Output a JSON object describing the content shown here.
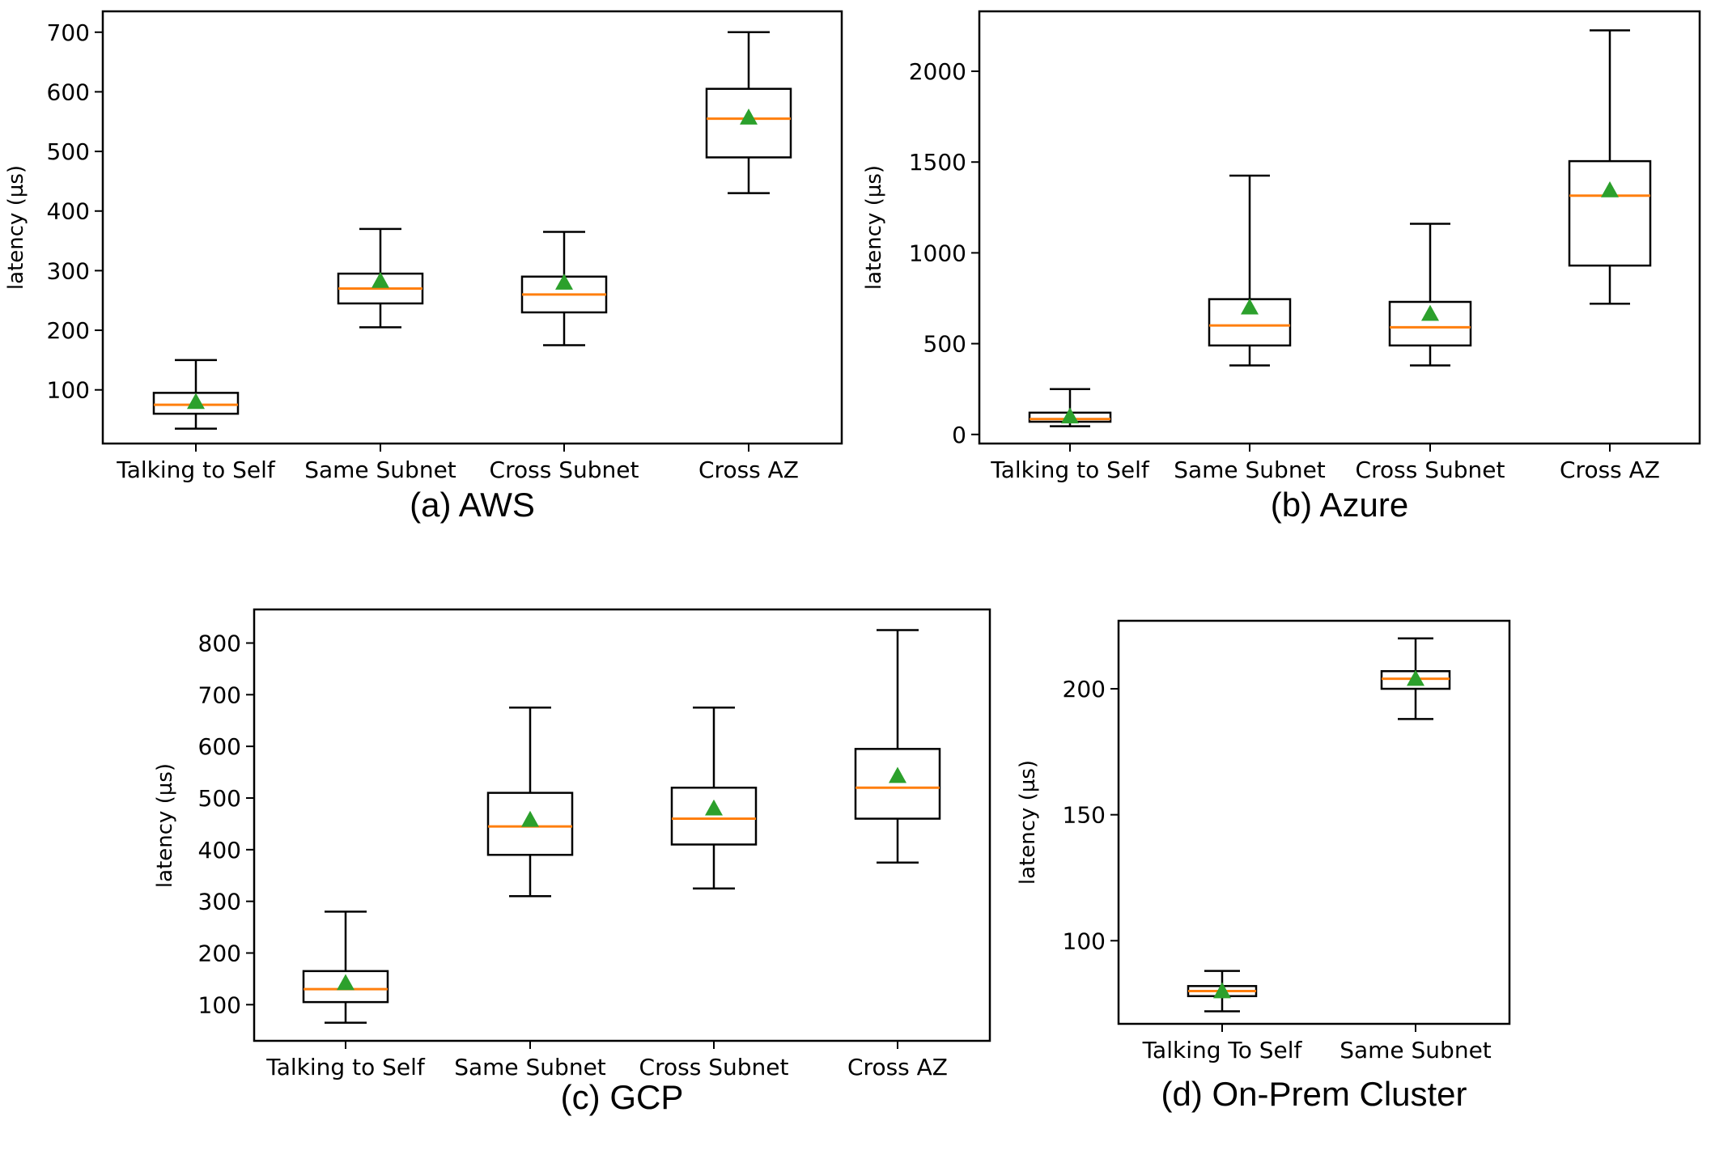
{
  "chart_data": [
    {
      "type": "box",
      "caption": "(a) AWS",
      "ylabel": "latency (µs)",
      "categories": [
        "Talking to Self",
        "Same Subnet",
        "Cross Subnet",
        "Cross AZ"
      ],
      "yticks": [
        100,
        200,
        300,
        400,
        500,
        600,
        700
      ],
      "ylim": [
        10,
        735
      ],
      "boxes": [
        {
          "whisker_low": 35,
          "q1": 60,
          "median": 75,
          "q3": 95,
          "whisker_high": 150,
          "mean": 80
        },
        {
          "whisker_low": 205,
          "q1": 245,
          "median": 270,
          "q3": 295,
          "whisker_high": 370,
          "mean": 283
        },
        {
          "whisker_low": 175,
          "q1": 230,
          "median": 260,
          "q3": 290,
          "whisker_high": 365,
          "mean": 280
        },
        {
          "whisker_low": 430,
          "q1": 490,
          "median": 555,
          "q3": 605,
          "whisker_high": 700,
          "mean": 557
        }
      ],
      "colors": {
        "median": "#ff7f0e",
        "mean": "#2ca02c"
      }
    },
    {
      "type": "box",
      "caption": "(b) Azure",
      "ylabel": "latency (µs)",
      "categories": [
        "Talking to Self",
        "Same Subnet",
        "Cross Subnet",
        "Cross AZ"
      ],
      "yticks": [
        0,
        500,
        1000,
        1500,
        2000
      ],
      "ylim": [
        -50,
        2330
      ],
      "boxes": [
        {
          "whisker_low": 45,
          "q1": 70,
          "median": 85,
          "q3": 120,
          "whisker_high": 250,
          "mean": 100
        },
        {
          "whisker_low": 380,
          "q1": 490,
          "median": 600,
          "q3": 745,
          "whisker_high": 1425,
          "mean": 700
        },
        {
          "whisker_low": 380,
          "q1": 490,
          "median": 590,
          "q3": 730,
          "whisker_high": 1160,
          "mean": 665
        },
        {
          "whisker_low": 720,
          "q1": 930,
          "median": 1315,
          "q3": 1505,
          "whisker_high": 2225,
          "mean": 1345
        }
      ],
      "colors": {
        "median": "#ff7f0e",
        "mean": "#2ca02c"
      }
    },
    {
      "type": "box",
      "caption": "(c) GCP",
      "ylabel": "latency (µs)",
      "categories": [
        "Talking to Self",
        "Same Subnet",
        "Cross Subnet",
        "Cross AZ"
      ],
      "yticks": [
        100,
        200,
        300,
        400,
        500,
        600,
        700,
        800
      ],
      "ylim": [
        30,
        865
      ],
      "boxes": [
        {
          "whisker_low": 65,
          "q1": 105,
          "median": 130,
          "q3": 165,
          "whisker_high": 280,
          "mean": 142
        },
        {
          "whisker_low": 310,
          "q1": 390,
          "median": 445,
          "q3": 510,
          "whisker_high": 675,
          "mean": 458
        },
        {
          "whisker_low": 325,
          "q1": 410,
          "median": 460,
          "q3": 520,
          "whisker_high": 675,
          "mean": 480
        },
        {
          "whisker_low": 375,
          "q1": 460,
          "median": 520,
          "q3": 595,
          "whisker_high": 825,
          "mean": 543
        }
      ],
      "colors": {
        "median": "#ff7f0e",
        "mean": "#2ca02c"
      }
    },
    {
      "type": "box",
      "caption": "(d) On-Prem Cluster",
      "ylabel": "latency (µs)",
      "categories": [
        "Talking To Self",
        "Same Subnet"
      ],
      "yticks": [
        100,
        150,
        200
      ],
      "ylim": [
        67,
        227
      ],
      "boxes": [
        {
          "whisker_low": 72,
          "q1": 78,
          "median": 80,
          "q3": 82,
          "whisker_high": 88,
          "mean": 80
        },
        {
          "whisker_low": 188,
          "q1": 200,
          "median": 204,
          "q3": 207,
          "whisker_high": 220,
          "mean": 204
        }
      ],
      "colors": {
        "median": "#ff7f0e",
        "mean": "#2ca02c"
      }
    }
  ]
}
